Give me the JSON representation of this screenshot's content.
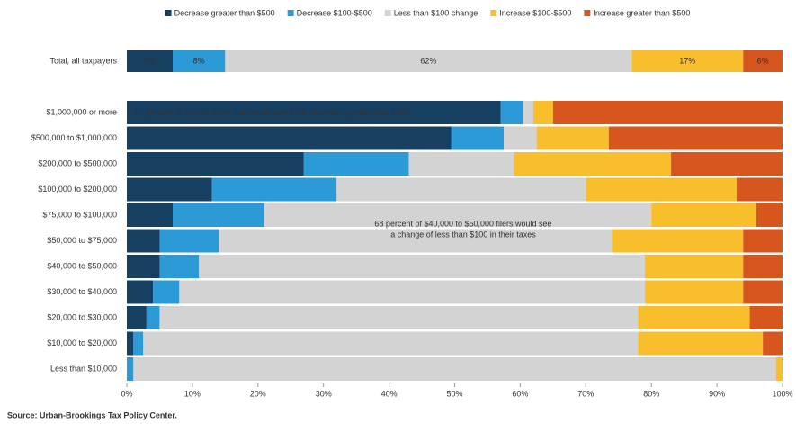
{
  "chart_data": {
    "type": "stacked-bar-horizontal",
    "categories": [
      "Total, all taxpayers",
      "$1,000,000 or more",
      "$500,000 to $1,000,000",
      "$200,000 to $500,000",
      "$100,000 to $200,000",
      "$75,000 to $100,000",
      "$50,000 to $75,000",
      "$40,000 to $50,000",
      "$30,000 to $40,000",
      "$20,000 to $30,000",
      "$10,000 to $20,000",
      "Less than $10,000"
    ],
    "series": [
      {
        "name": "Decrease greater than $500",
        "color": "#173f62",
        "values": [
          7,
          57,
          49.5,
          27,
          13,
          7,
          5,
          5,
          4,
          3,
          1,
          0
        ],
        "value_labels": [
          "7%",
          null,
          null,
          null,
          null,
          null,
          null,
          null,
          null,
          null,
          null,
          null
        ]
      },
      {
        "name": "Decrease $100-$500",
        "color": "#2b9ad6",
        "values": [
          8,
          3.5,
          8,
          16,
          19,
          14,
          9,
          6,
          4,
          2,
          1.5,
          1
        ],
        "value_labels": [
          "8%",
          null,
          null,
          null,
          null,
          null,
          null,
          null,
          null,
          null,
          null,
          null
        ]
      },
      {
        "name": "Less than $100 change",
        "color": "#d3d3d3",
        "values": [
          62,
          1.5,
          5,
          16,
          38,
          59,
          60,
          68,
          71,
          73,
          75.5,
          98
        ],
        "value_labels": [
          "62%",
          null,
          null,
          null,
          null,
          null,
          null,
          null,
          null,
          null,
          null,
          null
        ]
      },
      {
        "name": "Increase $100-$500",
        "color": "#f8be2c",
        "values": [
          17,
          3,
          11,
          24,
          23,
          16,
          20,
          15,
          15,
          17,
          19,
          1
        ],
        "value_labels": [
          "17%",
          null,
          null,
          null,
          null,
          null,
          null,
          null,
          null,
          null,
          null,
          null
        ]
      },
      {
        "name": "Increase greater than $500",
        "color": "#d6561e",
        "values": [
          6,
          35,
          26.5,
          17,
          7,
          4,
          6,
          6,
          6,
          5,
          3,
          0
        ],
        "value_labels": [
          "6%",
          null,
          null,
          null,
          null,
          null,
          null,
          null,
          null,
          null,
          null,
          null
        ]
      }
    ],
    "xlim": [
      0,
      100
    ],
    "xticks": [
      {
        "value": 0,
        "label": "0%"
      },
      {
        "value": 10,
        "label": "10%"
      },
      {
        "value": 20,
        "label": "20%"
      },
      {
        "value": 30,
        "label": "30%"
      },
      {
        "value": 40,
        "label": "40%"
      },
      {
        "value": 50,
        "label": "50%"
      },
      {
        "value": 60,
        "label": "60%"
      },
      {
        "value": 70,
        "label": "70%"
      },
      {
        "value": 80,
        "label": "80%"
      },
      {
        "value": 90,
        "label": "90%"
      },
      {
        "value": 100,
        "label": "100%"
      }
    ],
    "annotations": [
      "57 percent of $1,000,000+ filers would see a tax decrease greater than $500",
      "68 percent of $40,000 to $50,000 filers would see",
      "a change of less than $100 in their taxes"
    ],
    "source": "Source: Urban-Brookings Tax Policy Center."
  }
}
